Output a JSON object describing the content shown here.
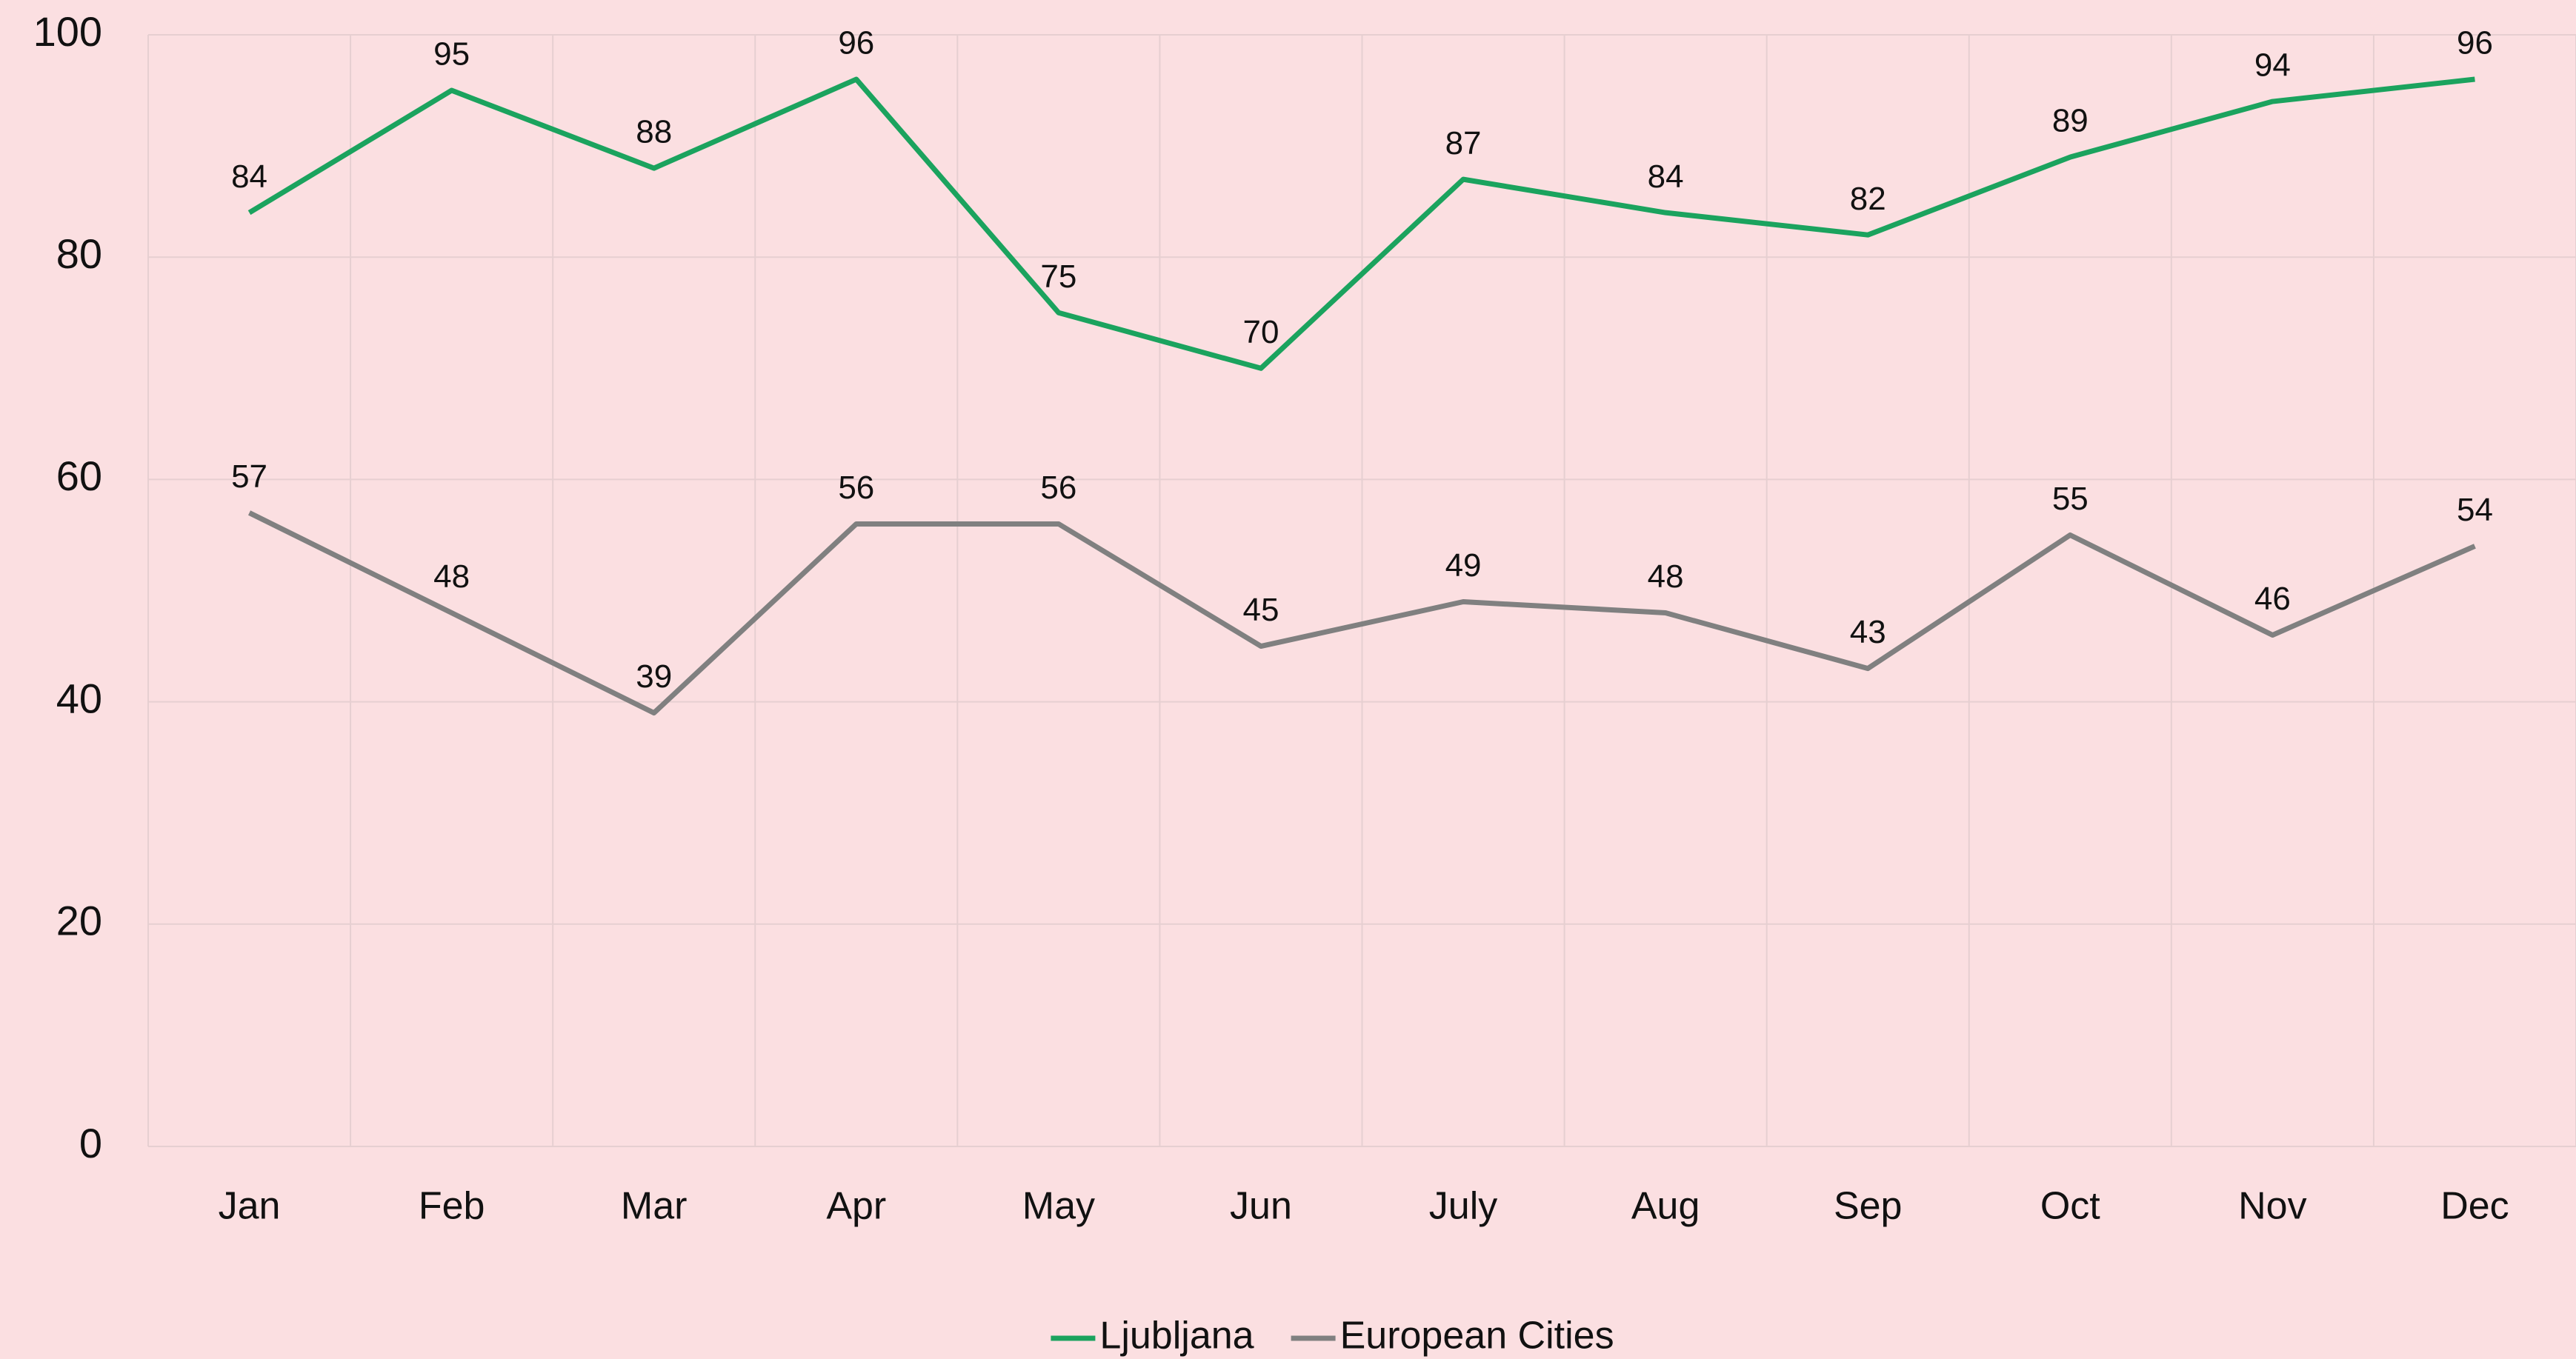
{
  "chart_data": {
    "type": "line",
    "categories": [
      "Jan",
      "Feb",
      "Mar",
      "Apr",
      "May",
      "Jun",
      "July",
      "Aug",
      "Sep",
      "Oct",
      "Nov",
      "Dec"
    ],
    "series": [
      {
        "name": "Ljubljana",
        "color": "#1ba35e",
        "values": [
          84,
          95,
          88,
          96,
          75,
          70,
          87,
          84,
          82,
          89,
          94,
          96
        ]
      },
      {
        "name": "European Cities",
        "color": "#808080",
        "values": [
          57,
          48,
          39,
          56,
          56,
          45,
          49,
          48,
          43,
          55,
          46,
          54
        ]
      }
    ],
    "ylim": [
      0,
      100
    ],
    "yticks": [
      0,
      20,
      40,
      60,
      80,
      100
    ],
    "grid": true,
    "legend": "bottom"
  }
}
